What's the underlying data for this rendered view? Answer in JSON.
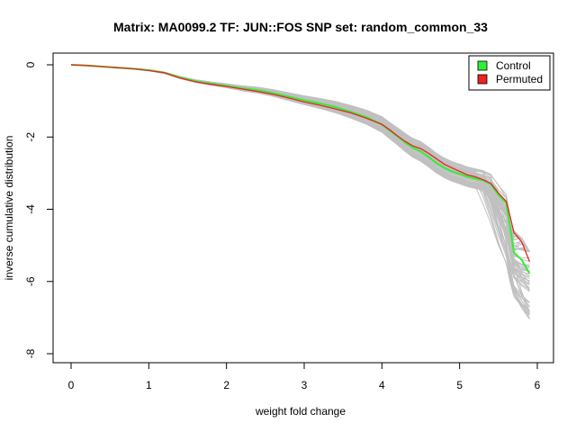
{
  "chart_data": {
    "type": "line",
    "title": "Matrix: MA0099.2 TF: JUN::FOS SNP set: random_common_33",
    "xlabel": "weight fold change",
    "ylabel": "inverse cumulative distribution",
    "xlim": [
      0,
      6
    ],
    "ylim": [
      -8,
      0
    ],
    "x_ticks": [
      "0",
      "1",
      "2",
      "3",
      "4",
      "5",
      "6"
    ],
    "y_ticks": [
      "0",
      "-2",
      "-4",
      "-6",
      "-8"
    ],
    "legend_position": "top-right",
    "series": [
      {
        "name": "Control",
        "color": "#33ee33",
        "x": [
          0,
          0.2,
          0.4,
          0.6,
          0.8,
          1.0,
          1.2,
          1.4,
          1.6,
          1.8,
          2.0,
          2.2,
          2.4,
          2.6,
          2.8,
          3.0,
          3.2,
          3.4,
          3.6,
          3.8,
          4.0,
          4.1,
          4.2,
          4.3,
          4.4,
          4.5,
          4.6,
          4.7,
          4.8,
          4.9,
          5.0,
          5.1,
          5.2,
          5.3,
          5.4,
          5.5,
          5.6,
          5.65,
          5.7,
          5.8,
          5.9
        ],
        "values": [
          0,
          -0.02,
          -0.05,
          -0.08,
          -0.11,
          -0.15,
          -0.22,
          -0.35,
          -0.45,
          -0.52,
          -0.58,
          -0.65,
          -0.7,
          -0.78,
          -0.88,
          -0.98,
          -1.07,
          -1.17,
          -1.3,
          -1.45,
          -1.65,
          -1.82,
          -1.98,
          -2.15,
          -2.3,
          -2.4,
          -2.55,
          -2.72,
          -2.85,
          -2.95,
          -3.02,
          -3.1,
          -3.15,
          -3.2,
          -3.3,
          -3.6,
          -3.82,
          -4.5,
          -5.2,
          -5.4,
          -5.78
        ]
      },
      {
        "name": "Permuted",
        "color": "#ee2222",
        "x": [
          0,
          0.2,
          0.4,
          0.6,
          0.8,
          1.0,
          1.2,
          1.4,
          1.6,
          1.8,
          2.0,
          2.2,
          2.4,
          2.6,
          2.8,
          3.0,
          3.2,
          3.4,
          3.6,
          3.8,
          4.0,
          4.1,
          4.2,
          4.3,
          4.4,
          4.5,
          4.6,
          4.7,
          4.8,
          4.9,
          5.0,
          5.1,
          5.2,
          5.3,
          5.4,
          5.5,
          5.6,
          5.65,
          5.7,
          5.8,
          5.9
        ],
        "values": [
          0,
          -0.02,
          -0.05,
          -0.08,
          -0.11,
          -0.16,
          -0.22,
          -0.37,
          -0.47,
          -0.54,
          -0.6,
          -0.67,
          -0.74,
          -0.82,
          -0.92,
          -1.03,
          -1.12,
          -1.22,
          -1.33,
          -1.48,
          -1.65,
          -1.8,
          -1.97,
          -2.12,
          -2.25,
          -2.32,
          -2.45,
          -2.6,
          -2.75,
          -2.85,
          -2.95,
          -3.05,
          -3.1,
          -3.18,
          -3.28,
          -3.55,
          -3.78,
          -4.2,
          -4.65,
          -4.9,
          -5.45
        ]
      }
    ]
  },
  "background_series": {
    "color": "#c0c0c0",
    "count": 60,
    "spread_ends_min": -7.9,
    "spread_ends_max": -4.4
  }
}
